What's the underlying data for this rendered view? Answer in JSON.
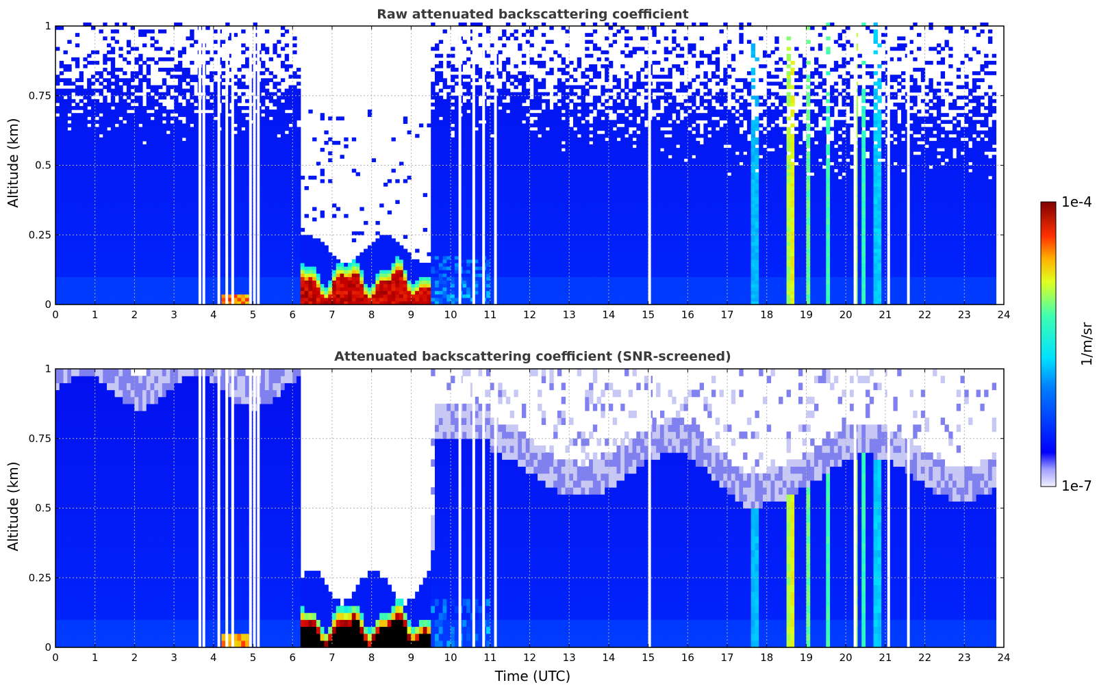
{
  "chart_data": [
    {
      "type": "heatmap",
      "title": "Raw attenuated backscattering coefficient",
      "xlabel": "",
      "ylabel": "Altitude (km)",
      "xlim": [
        0,
        24
      ],
      "ylim": [
        0,
        1
      ],
      "x_ticks": [
        "0",
        "1",
        "2",
        "3",
        "4",
        "5",
        "6",
        "7",
        "8",
        "9",
        "10",
        "11",
        "12",
        "13",
        "14",
        "15",
        "16",
        "17",
        "18",
        "19",
        "20",
        "21",
        "22",
        "23",
        "24"
      ],
      "y_ticks": [
        "0",
        "0.25",
        "0.5",
        "0.75",
        "1"
      ],
      "grid": true,
      "screened": false
    },
    {
      "type": "heatmap",
      "title": "Attenuated backscattering coefficient (SNR-screened)",
      "xlabel": "Time (UTC)",
      "ylabel": "Altitude (km)",
      "xlim": [
        0,
        24
      ],
      "ylim": [
        0,
        1
      ],
      "x_ticks": [
        "0",
        "1",
        "2",
        "3",
        "4",
        "5",
        "6",
        "7",
        "8",
        "9",
        "10",
        "11",
        "12",
        "13",
        "14",
        "15",
        "16",
        "17",
        "18",
        "19",
        "20",
        "21",
        "22",
        "23",
        "24"
      ],
      "y_ticks": [
        "0",
        "0.25",
        "0.5",
        "0.75",
        "1"
      ],
      "grid": true,
      "screened": true
    }
  ],
  "colorbar": {
    "max_label": "1e-4",
    "min_label": "1e-7",
    "label": "1/m/sr",
    "scale": "log",
    "colormap": "jet"
  },
  "data_end_hour": 23.8,
  "fog_layer": {
    "start_hour": 6.15,
    "end_hour": 9.45
  },
  "gap_hours": [
    3.62,
    3.72,
    4.1,
    4.3,
    4.45,
    4.9,
    5.0,
    5.1,
    10.2,
    10.55,
    10.8,
    11.1,
    15.0,
    20.2,
    21.05,
    21.55
  ]
}
